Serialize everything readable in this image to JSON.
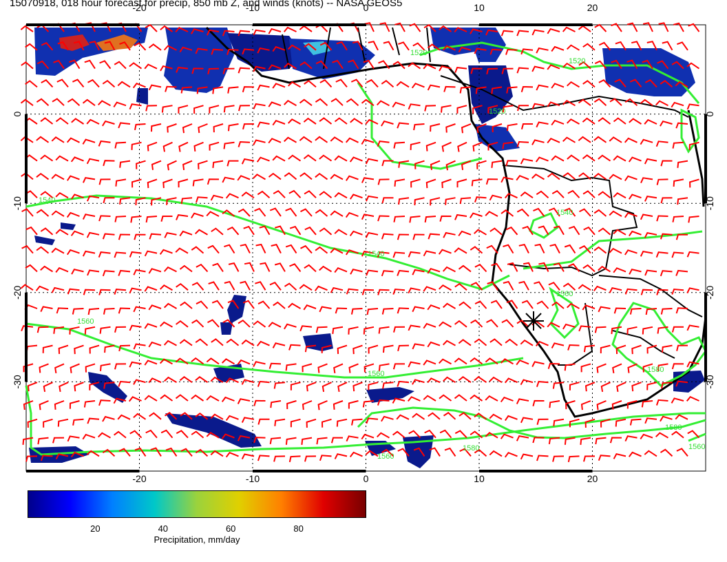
{
  "title": "15070918, 018 hour forecast for precip, 850 mb Z, and winds (knots) -- NASA GEOS5",
  "map": {
    "lon_range": [
      -30,
      30
    ],
    "lat_range": [
      -40,
      10
    ],
    "lon_ticks": [
      "-20",
      "-10",
      "0",
      "10",
      "20"
    ],
    "lat_ticks": [
      "0",
      "-10",
      "-20",
      "-30"
    ],
    "contour_labels": [
      "1520",
      "1520",
      "1520",
      "1540",
      "1540",
      "1540",
      "1560",
      "1560",
      "1560",
      "1580",
      "1580",
      "1580",
      "1560",
      "1560"
    ],
    "colors": {
      "wind_barbs": "#ff0000",
      "contours": "#33ee33",
      "coastlines": "#000000",
      "precip_low": "#0a1a8c",
      "precip_high": "#7a0000"
    },
    "marker": "asterisk"
  },
  "colorbar": {
    "ticks": [
      "20",
      "40",
      "60",
      "80"
    ],
    "label": "Precipitation, mm/day",
    "range": [
      0,
      100
    ],
    "colors": [
      "#00008b",
      "#0000ff",
      "#0080ff",
      "#00c8c8",
      "#9bd23c",
      "#e0d000",
      "#ff8000",
      "#e00000",
      "#780000"
    ]
  }
}
